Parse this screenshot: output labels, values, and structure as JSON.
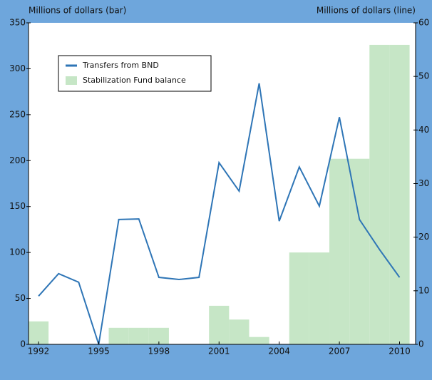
{
  "chart_data": {
    "type": "bar_line",
    "y_label": "Millions of dollars (bar)",
    "y2_label": "Millions of dollars (line)",
    "x": [
      1992,
      1993,
      1994,
      1995,
      1996,
      1997,
      1998,
      1999,
      2000,
      2001,
      2002,
      2003,
      2004,
      2005,
      2006,
      2007,
      2008,
      2009,
      2010
    ],
    "series": [
      {
        "name": "Transfers from BND",
        "type": "line",
        "axis": "y2",
        "color": "#2e75b6",
        "values": [
          9.0,
          13.2,
          11.6,
          0,
          23.3,
          23.4,
          12.5,
          12.1,
          12.5,
          33.9,
          28.6,
          48.7,
          23.0,
          33.1,
          25.8,
          42.4,
          23.3,
          17.7,
          12.5
        ]
      },
      {
        "name": "Stabilization Fund balance",
        "type": "bar",
        "axis": "y",
        "color": "#c6e6c6",
        "values": [
          25,
          0,
          0,
          0,
          18,
          18,
          18,
          0,
          0,
          42,
          27,
          8,
          0,
          100,
          100,
          202,
          202,
          326,
          326
        ]
      }
    ],
    "xlim": [
      1991.5,
      2010.8
    ],
    "xticks": [
      1992,
      1995,
      1998,
      2001,
      2004,
      2007,
      2010
    ],
    "ylim": [
      0,
      350
    ],
    "yticks": [
      0,
      50,
      100,
      150,
      200,
      250,
      300,
      350
    ],
    "y2lim": [
      0,
      60
    ],
    "y2ticks": [
      0,
      10,
      20,
      30,
      40,
      50,
      60
    ],
    "legend": "upper left"
  }
}
